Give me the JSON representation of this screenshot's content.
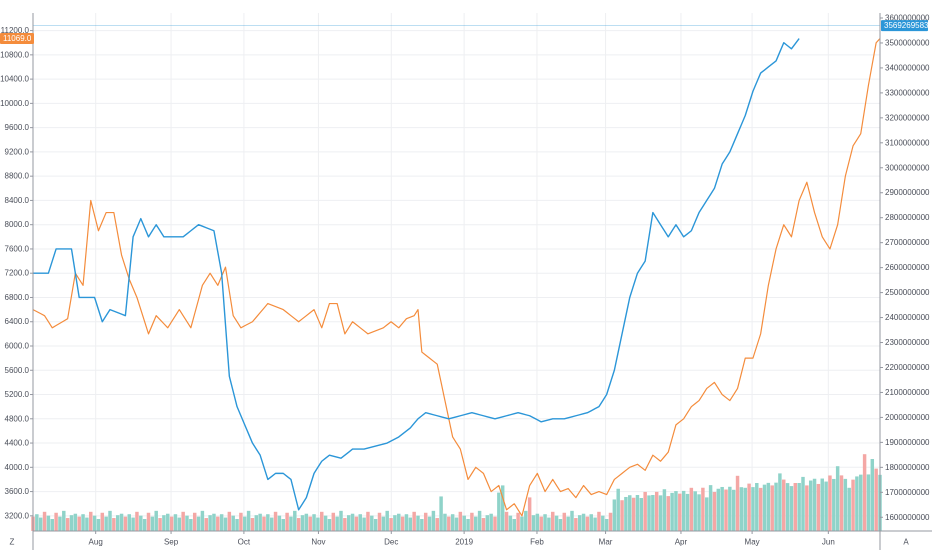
{
  "chart_data": {
    "type": "line",
    "x_tick_labels": [
      "Aug",
      "Sep",
      "Oct",
      "Nov",
      "Dec",
      "2019",
      "Feb",
      "Mar",
      "Apr",
      "May",
      "Jun"
    ],
    "y_left": {
      "ticks": [
        "11200.0",
        "10800.0",
        "10400.0",
        "10000.0",
        "9600.0",
        "9200.0",
        "8800.0",
        "8400.0",
        "8000.0",
        "7600.0",
        "7200.0",
        "6800.0",
        "6400.0",
        "6000.0",
        "5600.0",
        "5200.0",
        "4800.0",
        "4400.0",
        "4000.0",
        "3600.0",
        "3200.0"
      ],
      "range": [
        2950,
        11490
      ],
      "last_value_label": "11069.0",
      "last_value": 11069.0
    },
    "y_right": {
      "ticks": [
        "3600000000",
        "3500000000",
        "3400000000",
        "3300000000",
        "3200000000",
        "3100000000",
        "3000000000",
        "2900000000",
        "2800000000",
        "2700000000",
        "2600000000",
        "2500000000",
        "2400000000",
        "2300000000",
        "2200000000",
        "2100000000",
        "2000000000",
        "1900000000",
        "1800000000",
        "1700000000",
        "1600000000"
      ],
      "range": [
        1545000000,
        3620000000
      ],
      "last_value_label": "3569269583",
      "last_value": 3569269583
    },
    "corner_labels": {
      "left": "Z",
      "right": "A"
    },
    "colors": {
      "price": "#f48c3c",
      "metric": "#2b96d8",
      "volume_up": "#8fd3c9",
      "volume_down": "#f4a7a5",
      "grid": "#eeeff2",
      "axis": "#9598a1"
    },
    "grid": true,
    "n_points": 221,
    "price_keypoints": [
      [
        0,
        6600
      ],
      [
        3,
        6500
      ],
      [
        5,
        6300
      ],
      [
        9,
        6450
      ],
      [
        11,
        7200
      ],
      [
        13,
        7000
      ],
      [
        15,
        8400
      ],
      [
        17,
        7900
      ],
      [
        19,
        8200
      ],
      [
        21,
        8200
      ],
      [
        23,
        7500
      ],
      [
        25,
        7100
      ],
      [
        27,
        6800
      ],
      [
        30,
        6200
      ],
      [
        32,
        6500
      ],
      [
        35,
        6300
      ],
      [
        38,
        6600
      ],
      [
        41,
        6300
      ],
      [
        44,
        7000
      ],
      [
        46,
        7200
      ],
      [
        48,
        7000
      ],
      [
        50,
        7300
      ],
      [
        52,
        6500
      ],
      [
        54,
        6300
      ],
      [
        57,
        6400
      ],
      [
        61,
        6700
      ],
      [
        65,
        6600
      ],
      [
        69,
        6400
      ],
      [
        73,
        6600
      ],
      [
        75,
        6300
      ],
      [
        77,
        6700
      ],
      [
        79,
        6700
      ],
      [
        81,
        6200
      ],
      [
        83,
        6400
      ],
      [
        87,
        6200
      ],
      [
        91,
        6300
      ],
      [
        93,
        6400
      ],
      [
        95,
        6300
      ],
      [
        97,
        6450
      ],
      [
        99,
        6500
      ],
      [
        100,
        6600
      ],
      [
        101,
        5900
      ],
      [
        103,
        5800
      ],
      [
        105,
        5700
      ],
      [
        107,
        5100
      ],
      [
        109,
        4500
      ],
      [
        111,
        4300
      ],
      [
        113,
        3800
      ],
      [
        115,
        4000
      ],
      [
        117,
        3900
      ],
      [
        119,
        3600
      ],
      [
        121,
        3700
      ],
      [
        123,
        3300
      ],
      [
        125,
        3400
      ],
      [
        127,
        3200
      ],
      [
        129,
        3700
      ],
      [
        131,
        3900
      ],
      [
        133,
        3600
      ],
      [
        135,
        3800
      ],
      [
        137,
        3600
      ],
      [
        139,
        3650
      ],
      [
        141,
        3500
      ],
      [
        143,
        3700
      ],
      [
        145,
        3550
      ],
      [
        147,
        3600
      ],
      [
        149,
        3550
      ],
      [
        151,
        3800
      ],
      [
        153,
        3900
      ],
      [
        155,
        4000
      ],
      [
        157,
        4050
      ],
      [
        159,
        3950
      ],
      [
        161,
        4200
      ],
      [
        163,
        4100
      ],
      [
        165,
        4250
      ],
      [
        167,
        4700
      ],
      [
        169,
        4800
      ],
      [
        171,
        5000
      ],
      [
        173,
        5100
      ],
      [
        175,
        5300
      ],
      [
        177,
        5400
      ],
      [
        179,
        5200
      ],
      [
        181,
        5100
      ],
      [
        183,
        5300
      ],
      [
        185,
        5800
      ],
      [
        187,
        5800
      ],
      [
        189,
        6200
      ],
      [
        191,
        7000
      ],
      [
        193,
        7600
      ],
      [
        195,
        8000
      ],
      [
        197,
        7800
      ],
      [
        199,
        8400
      ],
      [
        201,
        8700
      ],
      [
        203,
        8200
      ],
      [
        205,
        7800
      ],
      [
        207,
        7600
      ],
      [
        209,
        8000
      ],
      [
        211,
        8800
      ],
      [
        213,
        9300
      ],
      [
        215,
        9500
      ],
      [
        217,
        10300
      ],
      [
        219,
        11000
      ],
      [
        220,
        11069
      ]
    ],
    "metric_keypoints": [
      [
        0,
        7200
      ],
      [
        4,
        7200
      ],
      [
        6,
        7600
      ],
      [
        10,
        7600
      ],
      [
        12,
        6800
      ],
      [
        16,
        6800
      ],
      [
        18,
        6400
      ],
      [
        20,
        6600
      ],
      [
        24,
        6500
      ],
      [
        26,
        7800
      ],
      [
        28,
        8100
      ],
      [
        30,
        7800
      ],
      [
        32,
        8000
      ],
      [
        34,
        7800
      ],
      [
        36,
        7800
      ],
      [
        39,
        7800
      ],
      [
        41,
        7900
      ],
      [
        43,
        8000
      ],
      [
        45,
        7950
      ],
      [
        47,
        7900
      ],
      [
        49,
        7200
      ],
      [
        51,
        5500
      ],
      [
        53,
        5000
      ],
      [
        55,
        4700
      ],
      [
        57,
        4400
      ],
      [
        59,
        4200
      ],
      [
        61,
        3800
      ],
      [
        63,
        3900
      ],
      [
        65,
        3900
      ],
      [
        67,
        3800
      ],
      [
        69,
        3300
      ],
      [
        71,
        3500
      ],
      [
        73,
        3900
      ],
      [
        75,
        4100
      ],
      [
        77,
        4200
      ],
      [
        80,
        4150
      ],
      [
        83,
        4300
      ],
      [
        86,
        4300
      ],
      [
        89,
        4350
      ],
      [
        92,
        4400
      ],
      [
        95,
        4500
      ],
      [
        98,
        4650
      ],
      [
        100,
        4800
      ],
      [
        102,
        4900
      ],
      [
        105,
        4850
      ],
      [
        108,
        4800
      ],
      [
        111,
        4850
      ],
      [
        114,
        4900
      ],
      [
        117,
        4850
      ],
      [
        120,
        4800
      ],
      [
        123,
        4850
      ],
      [
        126,
        4900
      ],
      [
        129,
        4850
      ],
      [
        132,
        4750
      ],
      [
        135,
        4800
      ],
      [
        138,
        4800
      ],
      [
        141,
        4850
      ],
      [
        144,
        4900
      ],
      [
        147,
        5000
      ],
      [
        149,
        5200
      ],
      [
        151,
        5600
      ],
      [
        153,
        6200
      ],
      [
        155,
        6800
      ],
      [
        157,
        7200
      ],
      [
        159,
        7400
      ],
      [
        161,
        8200
      ],
      [
        163,
        8000
      ],
      [
        165,
        7800
      ],
      [
        167,
        8000
      ],
      [
        169,
        7800
      ],
      [
        171,
        7900
      ],
      [
        173,
        8200
      ],
      [
        175,
        8400
      ],
      [
        177,
        8600
      ],
      [
        179,
        9000
      ],
      [
        181,
        9200
      ],
      [
        183,
        9500
      ],
      [
        185,
        9800
      ],
      [
        187,
        10200
      ],
      [
        189,
        10500
      ],
      [
        191,
        10600
      ],
      [
        193,
        10700
      ],
      [
        195,
        11000
      ],
      [
        197,
        10900
      ],
      [
        199,
        11069
      ]
    ],
    "volume_pattern": [
      0.3,
      0.35,
      0.28,
      0.4,
      0.32,
      0.25,
      0.38,
      0.3,
      0.42,
      0.27,
      0.33,
      0.36
    ],
    "volume_peaks": [
      [
        106,
        0.72
      ],
      [
        121,
        0.8
      ],
      [
        122,
        0.95
      ],
      [
        129,
        0.7
      ],
      [
        152,
        0.88
      ],
      [
        161,
        0.75
      ],
      [
        175,
        0.7
      ],
      [
        183,
        1.15
      ],
      [
        185,
        0.9
      ],
      [
        188,
        1.0
      ],
      [
        194,
        1.2
      ],
      [
        198,
        1.0
      ],
      [
        201,
        0.95
      ],
      [
        204,
        0.98
      ],
      [
        209,
        1.35
      ],
      [
        212,
        0.9
      ],
      [
        216,
        1.6
      ],
      [
        218,
        1.5
      ],
      [
        219,
        1.3
      ]
    ]
  }
}
